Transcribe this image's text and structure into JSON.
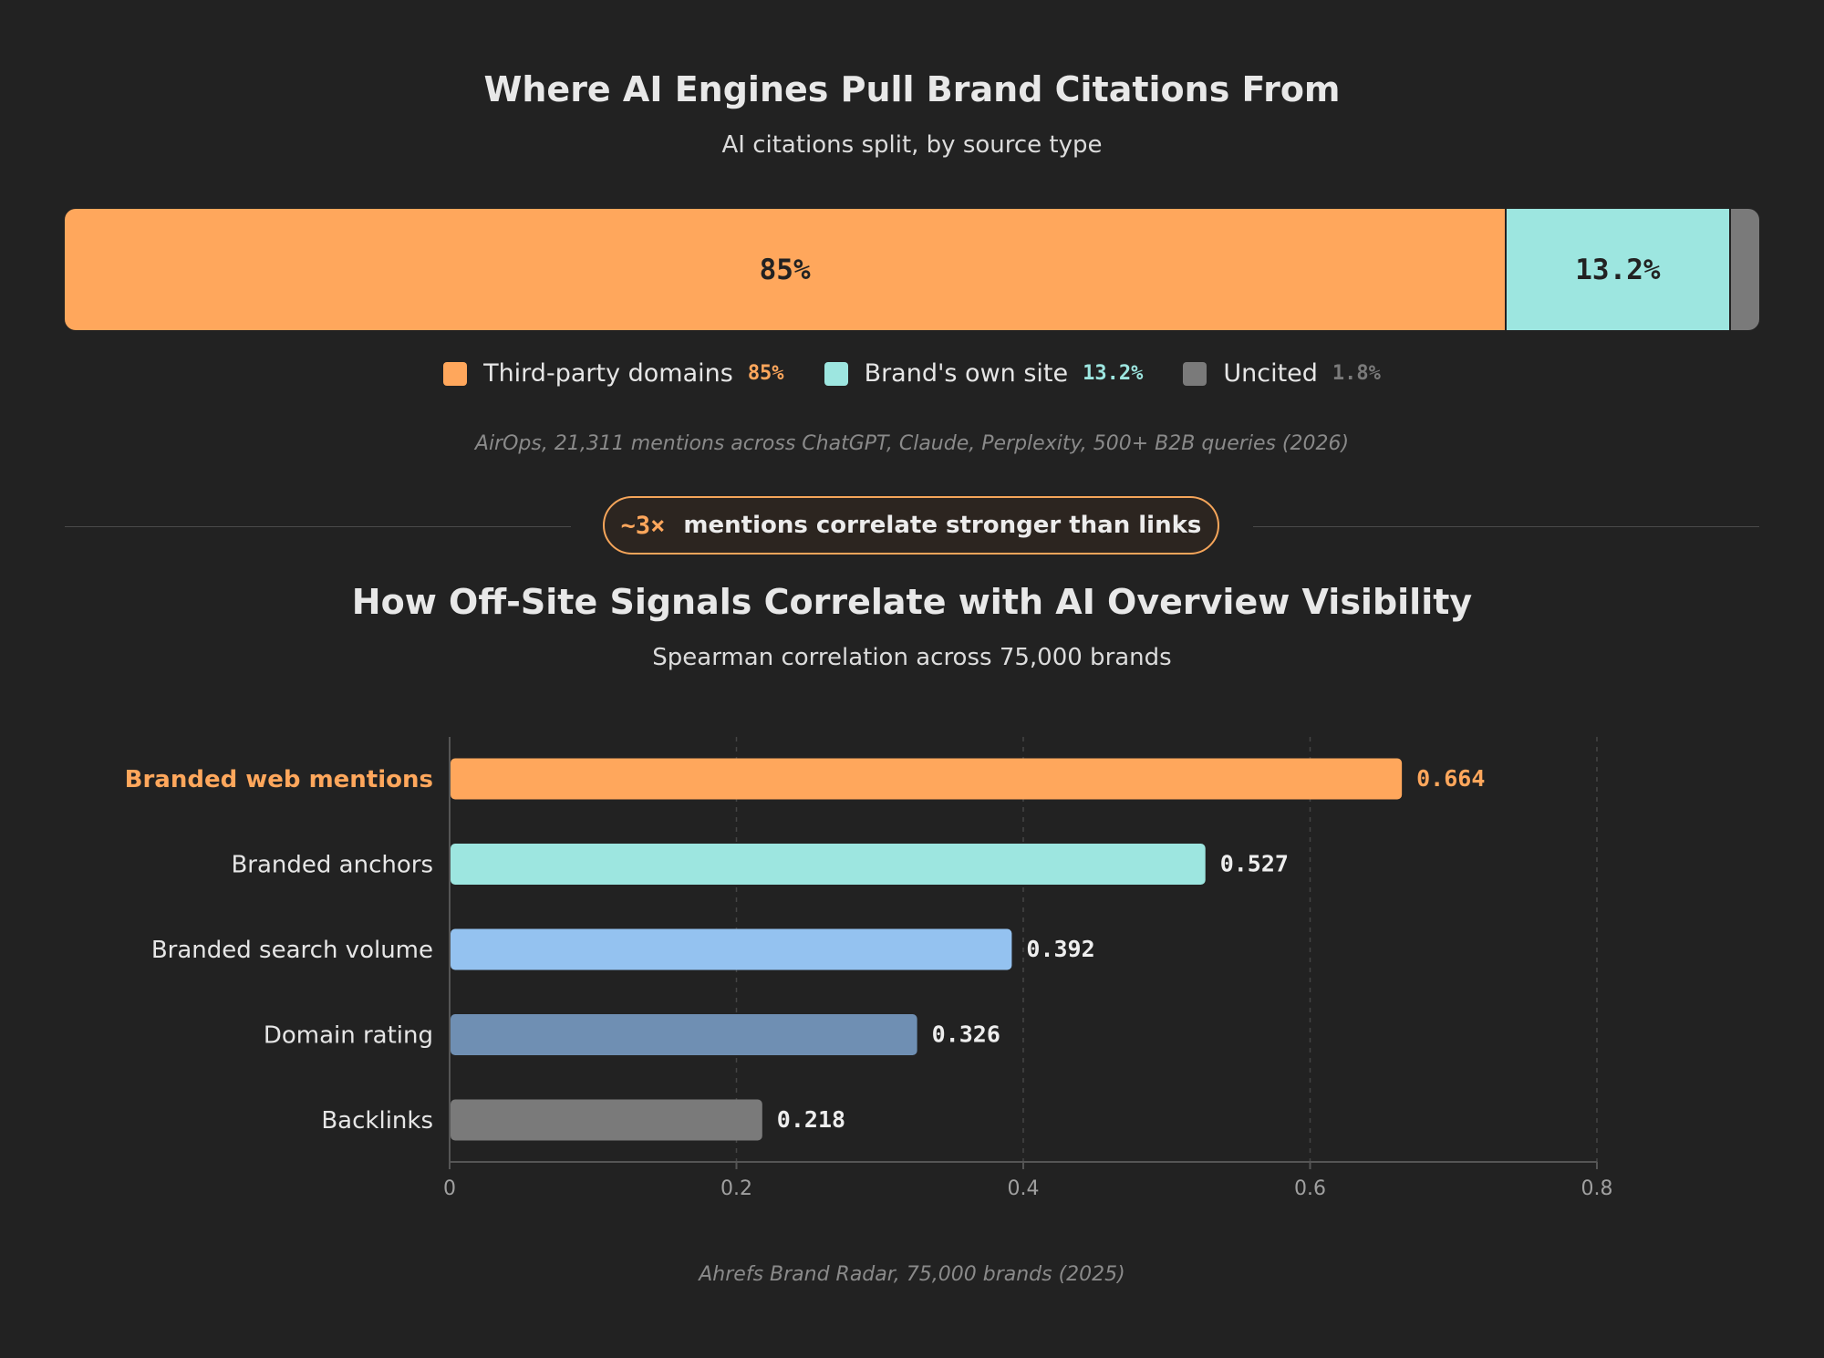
{
  "top": {
    "title": "Where AI Engines Pull Brand Citations From",
    "subtitle": "AI citations split, by source type",
    "source": "AirOps, 21,311 mentions across ChatGPT, Claude, Perplexity, 500+ B2B queries (2026)"
  },
  "callout": {
    "highlight": "~3×",
    "text": "mentions correlate stronger than links"
  },
  "bottom": {
    "title": "How Off-Site Signals Correlate with AI Overview Visibility",
    "subtitle": "Spearman correlation across 75,000 brands",
    "source": "Ahrefs Brand Radar, 75,000 brands (2025)"
  },
  "chart_data": [
    {
      "type": "bar",
      "orientation": "horizontal-stacked",
      "title": "Where AI Engines Pull Brand Citations From",
      "subtitle": "AI citations split, by source type",
      "series": [
        {
          "name": "Third-party domains",
          "value": 85,
          "label": "85%",
          "color": "#ffa75c"
        },
        {
          "name": "Brand's own site",
          "value": 13.2,
          "label": "13.2%",
          "color": "#9de6e0"
        },
        {
          "name": "Uncited",
          "value": 1.8,
          "label": "1.8%",
          "color": "#7a7a7a"
        }
      ],
      "legend_placement": "bottom"
    },
    {
      "type": "bar",
      "orientation": "horizontal",
      "title": "How Off-Site Signals Correlate with AI Overview Visibility",
      "subtitle": "Spearman correlation across 75,000 brands",
      "categories": [
        "Branded web mentions",
        "Branded anchors",
        "Branded search volume",
        "Domain rating",
        "Backlinks"
      ],
      "values": [
        0.664,
        0.527,
        0.392,
        0.326,
        0.218
      ],
      "value_labels": [
        "0.664",
        "0.527",
        "0.392",
        "0.326",
        "0.218"
      ],
      "colors": [
        "#ffa75c",
        "#9de6e0",
        "#94c2f0",
        "#6f8fb3",
        "#7a7a7a"
      ],
      "highlight_category": "Branded web mentions",
      "xlim": [
        0,
        0.8
      ],
      "xticks": [
        0,
        0.2,
        0.4,
        0.6,
        0.8
      ],
      "xtick_labels": [
        "0",
        "0.2",
        "0.4",
        "0.6",
        "0.8"
      ],
      "grid": "vertical dashed"
    }
  ]
}
